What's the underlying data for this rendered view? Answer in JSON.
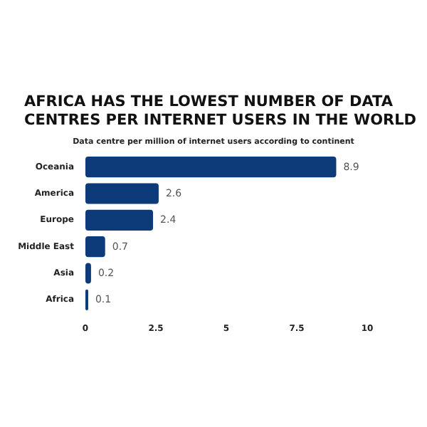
{
  "chart_data": {
    "type": "bar",
    "orientation": "horizontal",
    "title": "AFRICA HAS THE LOWEST NUMBER OF DATA CENTRES PER INTERNET USERS IN THE WORLD",
    "subtitle": "Data centre per million of internet users according to continent",
    "categories": [
      "Oceania",
      "America",
      "Europe",
      "Middle East",
      "Asia",
      "Africa"
    ],
    "values": [
      8.9,
      2.6,
      2.4,
      0.7,
      0.2,
      0.1
    ],
    "color": "#0d3b7a",
    "xlim": [
      0,
      10
    ],
    "xticks": [
      0,
      2.5,
      5,
      7.5,
      10
    ],
    "grid": false,
    "data_labels": true
  }
}
